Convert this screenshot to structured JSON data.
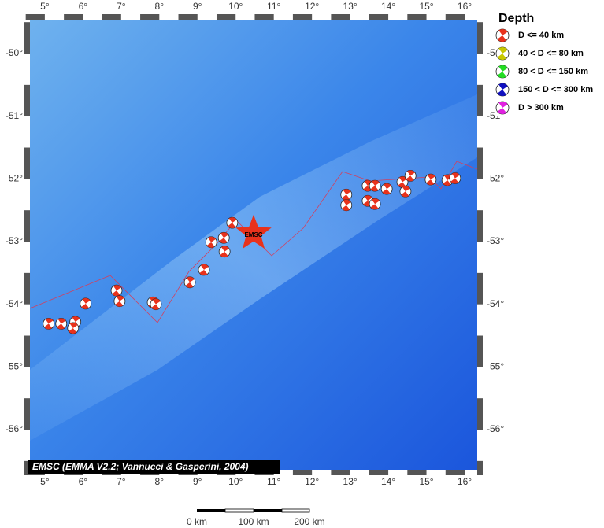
{
  "map": {
    "xlim": [
      4.61,
      16.33
    ],
    "ylim": [
      -56.64,
      -49.46
    ],
    "xticks": [
      {
        "value": 5,
        "label": "5°"
      },
      {
        "value": 6,
        "label": "6°"
      },
      {
        "value": 7,
        "label": "7°"
      },
      {
        "value": 8,
        "label": "8°"
      },
      {
        "value": 9,
        "label": "9°"
      },
      {
        "value": 10,
        "label": "10°"
      },
      {
        "value": 11,
        "label": "11°"
      },
      {
        "value": 12,
        "label": "12°"
      },
      {
        "value": 13,
        "label": "13°"
      },
      {
        "value": 14,
        "label": "14°"
      },
      {
        "value": 15,
        "label": "15°"
      },
      {
        "value": 16,
        "label": "16°"
      }
    ],
    "yticks": [
      {
        "value": -50,
        "label": "-50°"
      },
      {
        "value": -51,
        "label": "-51°"
      },
      {
        "value": -52,
        "label": "-52°"
      },
      {
        "value": -53,
        "label": "-53°"
      },
      {
        "value": -54,
        "label": "-54°"
      },
      {
        "value": -55,
        "label": "-55°"
      },
      {
        "value": -56,
        "label": "-56°"
      }
    ],
    "event_color": "#e8321c",
    "events": [
      {
        "lon": 5.1,
        "lat": -54.31
      },
      {
        "lon": 5.43,
        "lat": -54.31
      },
      {
        "lon": 5.8,
        "lat": -54.28
      },
      {
        "lon": 5.74,
        "lat": -54.38
      },
      {
        "lon": 6.07,
        "lat": -53.99
      },
      {
        "lon": 6.88,
        "lat": -53.78
      },
      {
        "lon": 6.96,
        "lat": -53.95
      },
      {
        "lon": 7.83,
        "lat": -53.97
      },
      {
        "lon": 7.91,
        "lat": -54.0
      },
      {
        "lon": 8.8,
        "lat": -53.65
      },
      {
        "lon": 9.17,
        "lat": -53.45
      },
      {
        "lon": 9.36,
        "lat": -53.01
      },
      {
        "lon": 9.69,
        "lat": -52.94
      },
      {
        "lon": 9.71,
        "lat": -53.16
      },
      {
        "lon": 9.91,
        "lat": -52.7
      },
      {
        "lon": 12.9,
        "lat": -52.25
      },
      {
        "lon": 12.9,
        "lat": -52.42
      },
      {
        "lon": 13.46,
        "lat": -52.11
      },
      {
        "lon": 13.65,
        "lat": -52.11
      },
      {
        "lon": 13.46,
        "lat": -52.35
      },
      {
        "lon": 13.65,
        "lat": -52.4
      },
      {
        "lon": 13.96,
        "lat": -52.16
      },
      {
        "lon": 14.37,
        "lat": -52.05
      },
      {
        "lon": 14.58,
        "lat": -51.95
      },
      {
        "lon": 14.45,
        "lat": -52.2
      },
      {
        "lon": 15.11,
        "lat": -52.01
      },
      {
        "lon": 15.55,
        "lat": -52.02
      },
      {
        "lon": 15.75,
        "lat": -51.99
      }
    ],
    "epicenter": {
      "lon": 10.47,
      "lat": -52.87,
      "label": "EMSC"
    },
    "credit": "EMSC (EMMA V2.2; Vannucci & Gasperini, 2004)",
    "legend": {
      "title": "Depth",
      "entries": [
        {
          "label": "D <= 40 km",
          "color": "#e8321c"
        },
        {
          "label": "40 < D <= 80 km",
          "color": "#c8c800"
        },
        {
          "label": "80 < D <= 150 km",
          "color": "#22dd22"
        },
        {
          "label": "150 < D <= 300 km",
          "color": "#1010c0"
        },
        {
          "label": "D > 300 km",
          "color": "#e020e0"
        }
      ]
    },
    "scale_bar": {
      "labels": [
        "0 km",
        "100 km",
        "200 km"
      ]
    }
  }
}
